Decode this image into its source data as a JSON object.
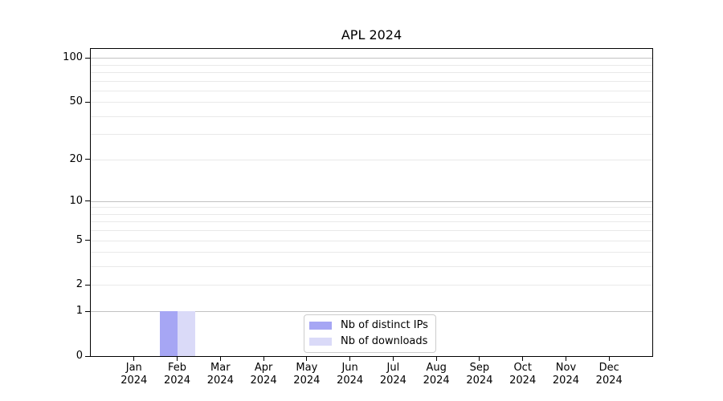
{
  "chart_data": {
    "type": "bar",
    "title": "APL 2024",
    "categories": [
      [
        "Jan",
        "2024"
      ],
      [
        "Feb",
        "2024"
      ],
      [
        "Mar",
        "2024"
      ],
      [
        "Apr",
        "2024"
      ],
      [
        "May",
        "2024"
      ],
      [
        "Jun",
        "2024"
      ],
      [
        "Jul",
        "2024"
      ],
      [
        "Aug",
        "2024"
      ],
      [
        "Sep",
        "2024"
      ],
      [
        "Oct",
        "2024"
      ],
      [
        "Nov",
        "2024"
      ],
      [
        "Dec",
        "2024"
      ]
    ],
    "series": [
      {
        "name": "Nb of distinct IPs",
        "color": "#a6a6f4",
        "values": [
          0,
          1,
          0,
          0,
          0,
          0,
          0,
          0,
          0,
          0,
          0,
          0
        ]
      },
      {
        "name": "Nb of downloads",
        "color": "#dadaf8",
        "values": [
          0,
          1,
          0,
          0,
          0,
          0,
          0,
          0,
          0,
          0,
          0,
          0
        ]
      }
    ],
    "yscale": "log1p",
    "ylim": [
      0,
      115
    ],
    "y_ticks": [
      0,
      1,
      2,
      5,
      10,
      20,
      50,
      100
    ],
    "y_major_gridlines": [
      1,
      10,
      100
    ],
    "y_minor_gridlines": [
      2,
      3,
      4,
      5,
      6,
      7,
      8,
      9,
      20,
      30,
      40,
      50,
      60,
      70,
      80,
      90
    ],
    "legend": {
      "position": "bottom-center"
    },
    "grid": "horizontal-only",
    "colors": {
      "grid_major": "#c2c2c2",
      "grid_minor": "#e9e9e9",
      "spine": "#000000",
      "legend_border": "#cccccc",
      "legend_bg": "#ffffff",
      "text": "#000000",
      "background": "#ffffff"
    }
  }
}
